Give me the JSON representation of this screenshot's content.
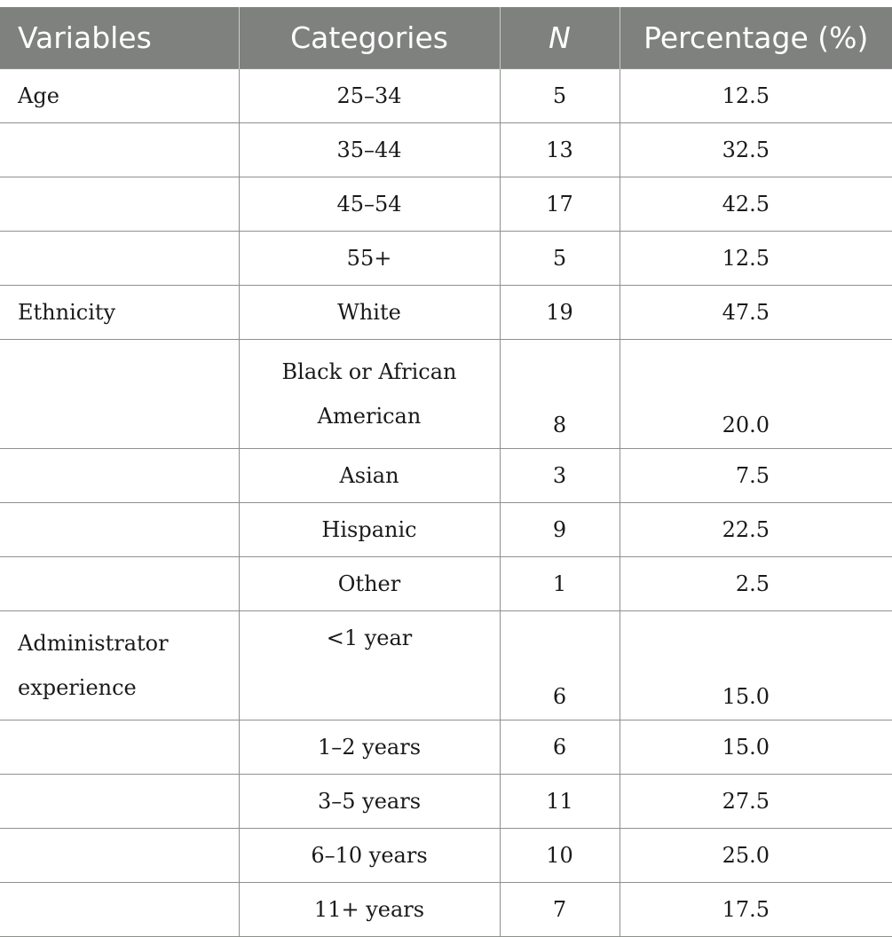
{
  "table": {
    "headers": {
      "variables": "Variables",
      "categories": "Categories",
      "n": "N",
      "percentage": "Percentage (%)"
    },
    "rows": [
      {
        "variable": "Age",
        "category": "25–34",
        "n": "5",
        "pct": "12.5"
      },
      {
        "variable": "",
        "category": "35–44",
        "n": "13",
        "pct": "32.5"
      },
      {
        "variable": "",
        "category": "45–54",
        "n": "17",
        "pct": "42.5"
      },
      {
        "variable": "",
        "category": "55+",
        "n": "5",
        "pct": "12.5"
      },
      {
        "variable": "Ethnicity",
        "category": "White",
        "n": "19",
        "pct": "47.5"
      },
      {
        "variable": "",
        "category": "Black or African American",
        "n": "8",
        "pct": "20.0"
      },
      {
        "variable": "",
        "category": "Asian",
        "n": "3",
        "pct": "7.5"
      },
      {
        "variable": "",
        "category": "Hispanic",
        "n": "9",
        "pct": "22.5"
      },
      {
        "variable": "",
        "category": "Other",
        "n": "1",
        "pct": "2.5"
      },
      {
        "variable": "Administrator experience",
        "category": "<1 year",
        "n": "6",
        "pct": "15.0"
      },
      {
        "variable": "",
        "category": "1–2 years",
        "n": "6",
        "pct": "15.0"
      },
      {
        "variable": "",
        "category": "3–5 years",
        "n": "11",
        "pct": "27.5"
      },
      {
        "variable": "",
        "category": "6–10 years",
        "n": "10",
        "pct": "25.0"
      },
      {
        "variable": "",
        "category": "11+ years",
        "n": "7",
        "pct": "17.5"
      }
    ]
  },
  "colors": {
    "header_background": "#7f817f",
    "header_text": "#ffffff",
    "rule": "#8e908e"
  }
}
